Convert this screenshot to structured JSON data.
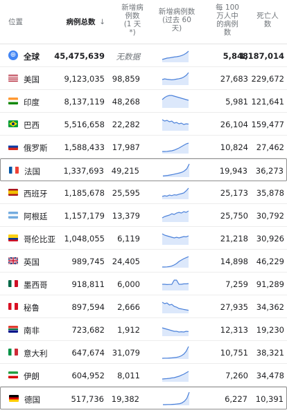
{
  "header": {
    "location": "位置",
    "total_cases": "病例总数",
    "sort_icon": "arrow-down-icon",
    "new_cases": [
      "新增病",
      "例数",
      "(1 天",
      "*)"
    ],
    "new_cases_60": [
      "新增病例数",
      "(过去 60",
      "天)"
    ],
    "per_million": [
      "每 100",
      "万人中",
      "的病例",
      "数"
    ],
    "deaths": [
      "死亡人",
      "数"
    ]
  },
  "colors": {
    "spark_line": "#4a80d9",
    "spark_fill": "#dce8fb",
    "header_text": "#70757a",
    "highlight_border": "#8d8d8d"
  },
  "rows": [
    {
      "name": "全球",
      "total": "45,475,639",
      "new": "无数据",
      "permil": "5,848",
      "deaths": "1,187,014",
      "flag": "globe-icon",
      "trend": [
        2,
        2.5,
        3,
        3.2,
        3.5,
        3.8,
        4,
        4.3,
        4.8,
        5.5,
        6.5,
        8
      ]
    },
    {
      "name": "美国",
      "total": "9,123,035",
      "new": "98,859",
      "permil": "27,683",
      "deaths": "229,672",
      "flag": "us-flag-icon",
      "trend": [
        4,
        4.5,
        4.2,
        4,
        3.8,
        4,
        4.3,
        4.6,
        5,
        5.8,
        7,
        9
      ]
    },
    {
      "name": "印度",
      "total": "8,137,119",
      "new": "48,268",
      "permil": "5,981",
      "deaths": "121,641",
      "flag": "india-flag-icon",
      "trend": [
        6,
        7.5,
        8.5,
        9,
        9,
        8.5,
        8,
        7.5,
        7,
        6.5,
        6,
        5.5
      ]
    },
    {
      "name": "巴西",
      "total": "5,516,658",
      "new": "22,282",
      "permil": "26,104",
      "deaths": "159,477",
      "flag": "brazil-flag-icon",
      "trend": [
        8,
        7,
        7.5,
        6.5,
        7,
        5.5,
        6,
        5,
        5.5,
        4.5,
        5,
        4.8
      ]
    },
    {
      "name": "俄罗斯",
      "total": "1,588,433",
      "new": "17,987",
      "permil": "10,824",
      "deaths": "27,462",
      "flag": "russia-flag-icon",
      "trend": [
        1.5,
        1.5,
        1.6,
        1.8,
        2,
        2.5,
        3.2,
        4,
        5,
        6,
        7,
        7.5
      ]
    },
    {
      "name": "法国",
      "total": "1,337,693",
      "new": "49,215",
      "permil": "19,943",
      "deaths": "36,273",
      "flag": "france-flag-icon",
      "trend": [
        0.8,
        1,
        1.2,
        1.5,
        1.8,
        2.2,
        2.6,
        3,
        3.5,
        4.5,
        6,
        9.5
      ],
      "highlight": true
    },
    {
      "name": "西班牙",
      "total": "1,185,678",
      "new": "25,595",
      "permil": "25,173",
      "deaths": "35,878",
      "flag": "spain-flag-icon",
      "trend": [
        2,
        2.5,
        2.2,
        3,
        2.6,
        3.2,
        3,
        3.6,
        4,
        4.5,
        6,
        8
      ]
    },
    {
      "name": "阿根廷",
      "total": "1,157,179",
      "new": "13,379",
      "permil": "25,750",
      "deaths": "30,792",
      "flag": "argentina-flag-icon",
      "trend": [
        3,
        4,
        4.5,
        5,
        6,
        5.5,
        6.5,
        7,
        6.5,
        7.5,
        7,
        8
      ]
    },
    {
      "name": "哥伦比亚",
      "total": "1,048,055",
      "new": "6,119",
      "permil": "21,218",
      "deaths": "30,926",
      "flag": "colombia-flag-icon",
      "trend": [
        8,
        7,
        6.5,
        6,
        5.5,
        5,
        5.5,
        5,
        5.5,
        6,
        5.8,
        6.5
      ]
    },
    {
      "name": "英国",
      "total": "989,745",
      "new": "24,405",
      "permil": "14,898",
      "deaths": "46,229",
      "flag": "uk-flag-icon",
      "trend": [
        0.5,
        0.5,
        0.6,
        0.8,
        1.2,
        2,
        3,
        4.5,
        5.5,
        6.5,
        7.2,
        8
      ]
    },
    {
      "name": "墨西哥",
      "total": "918,811",
      "new": "6,000",
      "permil": "7,259",
      "deaths": "91,289",
      "flag": "mexico-flag-icon",
      "trend": [
        4.5,
        4.5,
        4.3,
        4.4,
        4.4,
        7.5,
        7.5,
        4.5,
        4.5,
        4.8,
        4.8,
        5
      ]
    },
    {
      "name": "秘鲁",
      "total": "897,594",
      "new": "2,666",
      "permil": "27,935",
      "deaths": "34,362",
      "flag": "peru-flag-icon",
      "trend": [
        8,
        7,
        7.5,
        6,
        6.5,
        5,
        4.5,
        3.5,
        3.2,
        2.8,
        2.5,
        2.2
      ]
    },
    {
      "name": "南非",
      "total": "723,682",
      "new": "1,912",
      "permil": "12,313",
      "deaths": "19,230",
      "flag": "south-africa-flag-icon",
      "trend": [
        6,
        5.5,
        5,
        4.5,
        4,
        3.5,
        3.5,
        3,
        3.2,
        3,
        3.5,
        3.3
      ]
    },
    {
      "name": "意大利",
      "total": "647,674",
      "new": "31,079",
      "permil": "10,751",
      "deaths": "38,321",
      "flag": "italy-flag-icon",
      "trend": [
        0.5,
        0.6,
        0.6,
        0.7,
        0.8,
        1,
        1.2,
        1.6,
        2.3,
        3.5,
        5.5,
        9
      ]
    },
    {
      "name": "伊朗",
      "total": "604,952",
      "new": "8,011",
      "permil": "7,260",
      "deaths": "34,478",
      "flag": "iran-flag-icon",
      "trend": [
        2,
        2.2,
        2.3,
        2.5,
        2.8,
        3,
        3.5,
        4,
        4.8,
        5.5,
        6.5,
        7.5
      ]
    },
    {
      "name": "德国",
      "total": "517,736",
      "new": "19,382",
      "permil": "6,227",
      "deaths": "10,391",
      "flag": "germany-flag-icon",
      "trend": [
        0.5,
        0.5,
        0.6,
        0.6,
        0.7,
        0.8,
        1,
        1.2,
        1.8,
        3,
        5,
        9.5
      ],
      "highlight": true
    }
  ]
}
